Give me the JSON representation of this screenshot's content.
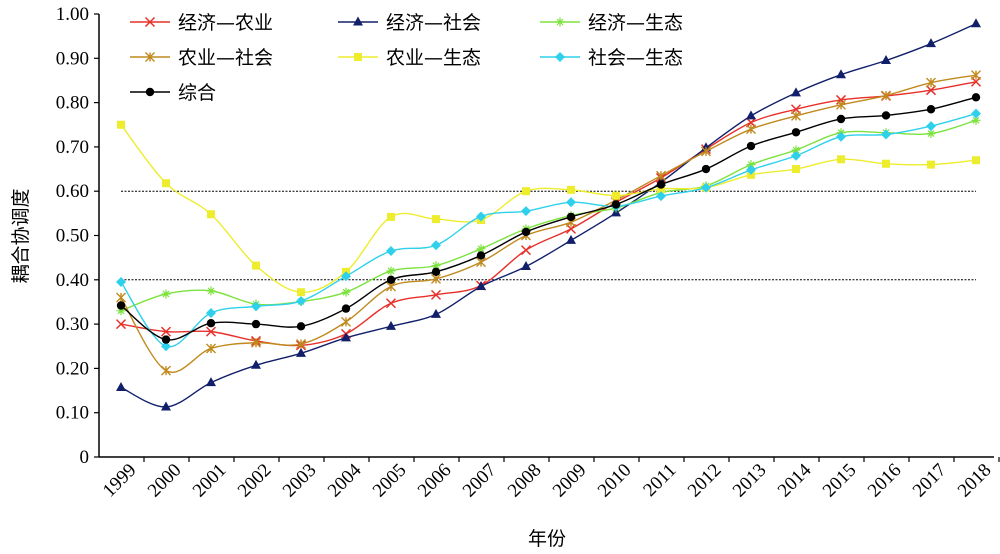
{
  "chart_data": {
    "type": "line",
    "xlabel": "年份",
    "ylabel": "耦合协调度",
    "ylim": [
      0,
      1
    ],
    "yticks": [
      "0",
      "0.10",
      "0.20",
      "0.30",
      "0.40",
      "0.50",
      "0.60",
      "0.70",
      "0.80",
      "0.90",
      "1.00"
    ],
    "categories": [
      "1999",
      "2000",
      "2001",
      "2002",
      "2003",
      "2004",
      "2005",
      "2006",
      "2007",
      "2008",
      "2009",
      "2010",
      "2011",
      "2012",
      "2013",
      "2014",
      "2015",
      "2016",
      "2017",
      "2018"
    ],
    "reference_lines": [
      0.4,
      0.6
    ],
    "grid": false,
    "legend_position": "top-left",
    "series": [
      {
        "name": "经济—农业",
        "color": "#e8302a",
        "marker": "x",
        "values": [
          0.3,
          0.283,
          0.283,
          0.262,
          0.252,
          0.278,
          0.347,
          0.366,
          0.387,
          0.467,
          0.515,
          0.575,
          0.63,
          0.695,
          0.755,
          0.785,
          0.806,
          0.815,
          0.828,
          0.847
        ]
      },
      {
        "name": "经济—社会",
        "color": "#12206b",
        "marker": "triangle",
        "values": [
          0.157,
          0.113,
          0.168,
          0.207,
          0.234,
          0.269,
          0.295,
          0.322,
          0.385,
          0.43,
          0.489,
          0.551,
          0.62,
          0.698,
          0.77,
          0.822,
          0.863,
          0.895,
          0.933,
          0.978
        ]
      },
      {
        "name": "经济—生态",
        "color": "#7ce23d",
        "marker": "star",
        "values": [
          0.33,
          0.368,
          0.375,
          0.345,
          0.351,
          0.372,
          0.42,
          0.432,
          0.47,
          0.515,
          0.545,
          0.562,
          0.597,
          0.612,
          0.66,
          0.693,
          0.732,
          0.732,
          0.73,
          0.76
        ]
      },
      {
        "name": "农业—社会",
        "color": "#c08a1e",
        "marker": "asterisk",
        "values": [
          0.36,
          0.195,
          0.245,
          0.258,
          0.255,
          0.305,
          0.385,
          0.402,
          0.44,
          0.5,
          0.53,
          0.58,
          0.635,
          0.69,
          0.74,
          0.77,
          0.795,
          0.816,
          0.845,
          0.862
        ]
      },
      {
        "name": "农业—生态",
        "color": "#eded2d",
        "marker": "square",
        "values": [
          0.75,
          0.618,
          0.548,
          0.432,
          0.372,
          0.418,
          0.542,
          0.537,
          0.535,
          0.6,
          0.603,
          0.59,
          0.605,
          0.608,
          0.637,
          0.65,
          0.672,
          0.662,
          0.66,
          0.67
        ]
      },
      {
        "name": "社会—生态",
        "color": "#2fd0ec",
        "marker": "diamond",
        "values": [
          0.395,
          0.25,
          0.325,
          0.34,
          0.352,
          0.408,
          0.465,
          0.478,
          0.543,
          0.555,
          0.575,
          0.566,
          0.589,
          0.608,
          0.648,
          0.68,
          0.723,
          0.728,
          0.747,
          0.775
        ]
      },
      {
        "name": "综合",
        "color": "#000000",
        "marker": "circle",
        "values": [
          0.342,
          0.265,
          0.302,
          0.3,
          0.295,
          0.335,
          0.4,
          0.418,
          0.455,
          0.508,
          0.542,
          0.57,
          0.615,
          0.65,
          0.702,
          0.733,
          0.763,
          0.771,
          0.785,
          0.812
        ]
      }
    ]
  }
}
